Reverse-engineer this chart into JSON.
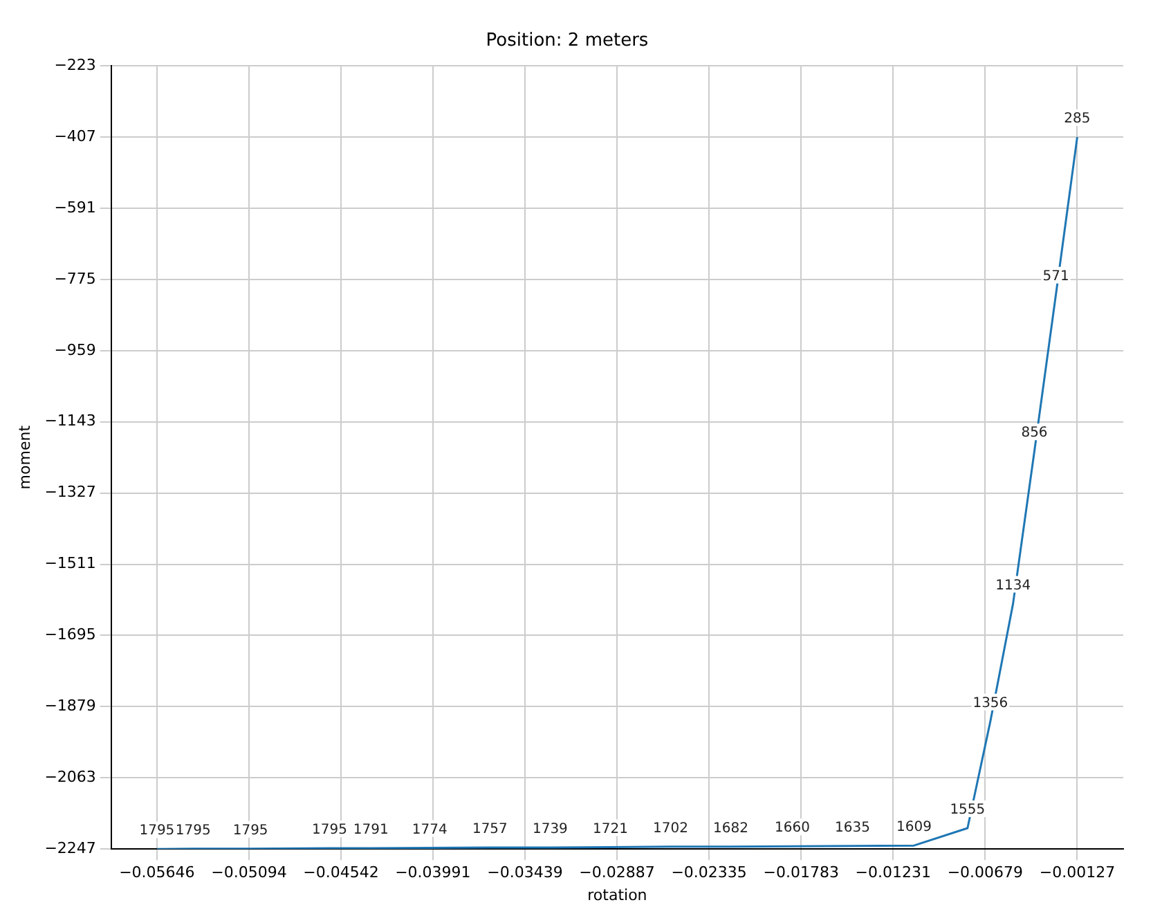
{
  "chart_data": {
    "type": "line",
    "title": "Position: 2 meters",
    "xlabel": "rotation",
    "ylabel": "moment",
    "x": [
      -0.05646,
      -0.05429,
      -0.05085,
      -0.04611,
      -0.04363,
      -0.0401,
      -0.03649,
      -0.03288,
      -0.02927,
      -0.02566,
      -0.02205,
      -0.01836,
      -0.01475,
      -0.01106,
      -0.00785,
      -0.00648,
      -0.00512,
      -0.00384,
      -0.00255,
      -0.00127
    ],
    "series": [
      {
        "color": "#1f77b4",
        "values": [
          -2247,
          -2246,
          -2246,
          -2245,
          -2245,
          -2244,
          -2243,
          -2243,
          -2242,
          -2241,
          -2241,
          -2240,
          -2239,
          -2238,
          -2193,
          -1917,
          -1613,
          -1219,
          -814,
          -407
        ]
      }
    ],
    "annotations": [
      {
        "text": "1795",
        "x": -0.05646,
        "y": -2247
      },
      {
        "text": "1795",
        "x": -0.05429,
        "y": -2246
      },
      {
        "text": "1795",
        "x": -0.05085,
        "y": -2246
      },
      {
        "text": "1795",
        "x": -0.04611,
        "y": -2245
      },
      {
        "text": "1791",
        "x": -0.04363,
        "y": -2245
      },
      {
        "text": "1774",
        "x": -0.0401,
        "y": -2244
      },
      {
        "text": "1757",
        "x": -0.03649,
        "y": -2243
      },
      {
        "text": "1739",
        "x": -0.03288,
        "y": -2243
      },
      {
        "text": "1721",
        "x": -0.02927,
        "y": -2242
      },
      {
        "text": "1702",
        "x": -0.02566,
        "y": -2241
      },
      {
        "text": "1682",
        "x": -0.02205,
        "y": -2241
      },
      {
        "text": "1660",
        "x": -0.01836,
        "y": -2240
      },
      {
        "text": "1635",
        "x": -0.01475,
        "y": -2239
      },
      {
        "text": "1609",
        "x": -0.01106,
        "y": -2238
      },
      {
        "text": "1555",
        "x": -0.00785,
        "y": -2193
      },
      {
        "text": "1356",
        "x": -0.00648,
        "y": -1917
      },
      {
        "text": "1134",
        "x": -0.00512,
        "y": -1613
      },
      {
        "text": "856",
        "x": -0.00384,
        "y": -1219
      },
      {
        "text": "571",
        "x": -0.00255,
        "y": -814
      },
      {
        "text": "285",
        "x": -0.00127,
        "y": -407
      }
    ],
    "xlim": [
      -0.0592,
      0.00149
    ],
    "xticks": [
      -0.05646,
      -0.05094,
      -0.04542,
      -0.03991,
      -0.03439,
      -0.02887,
      -0.02335,
      -0.01783,
      -0.01231,
      -0.00679,
      -0.00127
    ],
    "ylim": [
      -2247,
      -223
    ],
    "yticks": [
      -223,
      -407,
      -591,
      -775,
      -959,
      -1143,
      -1327,
      -1511,
      -1695,
      -1879,
      -2063,
      -2247
    ],
    "grid": true,
    "marker": "none",
    "legend": false
  }
}
